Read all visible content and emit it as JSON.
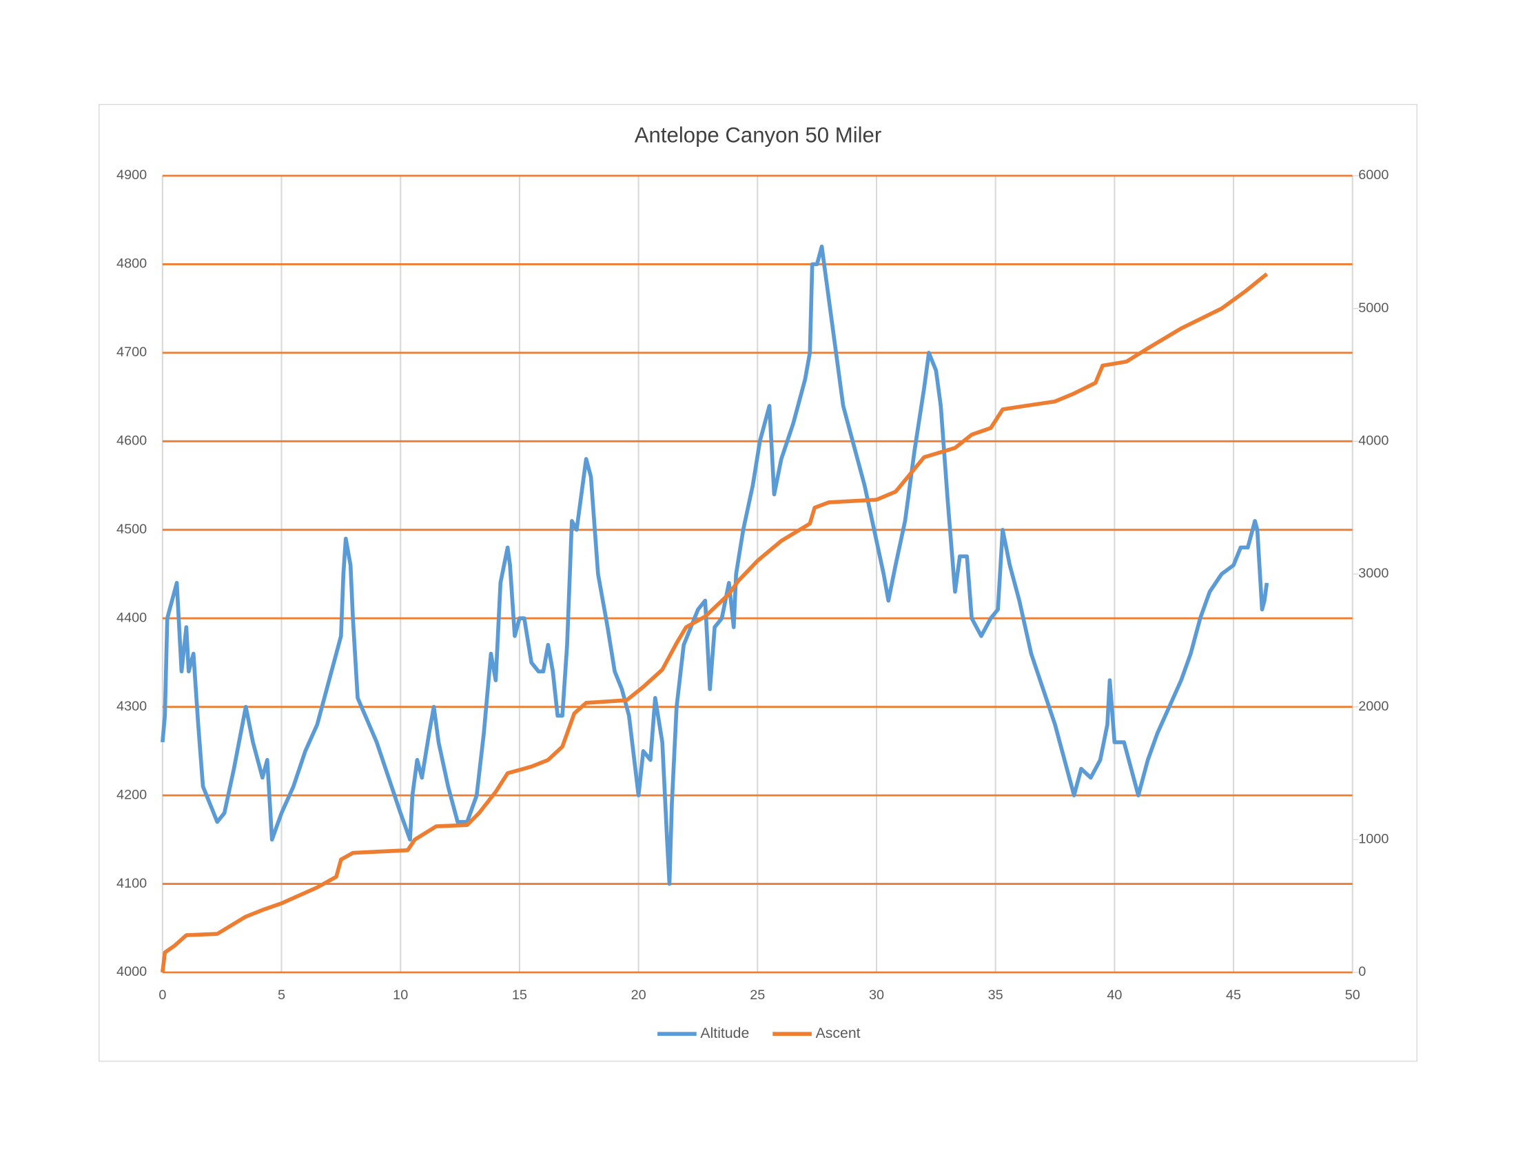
{
  "chart_data": {
    "type": "line",
    "title": "Antelope Canyon 50 Miler",
    "xlim": [
      0,
      50
    ],
    "xticks": [
      0,
      5,
      10,
      15,
      20,
      25,
      30,
      35,
      40,
      45,
      50
    ],
    "ylim": [
      4000,
      4900
    ],
    "yticks": [
      4000,
      4100,
      4200,
      4300,
      4400,
      4500,
      4600,
      4700,
      4800,
      4900
    ],
    "y2lim": [
      0,
      6000
    ],
    "y2ticks": [
      0,
      1000,
      2000,
      3000,
      4000,
      5000,
      6000
    ],
    "grid": true,
    "hgrid_color": "#ed7d31",
    "vgrid_color": "#d9d9d9",
    "legend": "bottom",
    "series": [
      {
        "name": "Altitude",
        "color": "#5b9bd5",
        "x": [
          0,
          0.1,
          0.2,
          0.5,
          0.6,
          0.8,
          1.0,
          1.1,
          1.3,
          1.5,
          1.7,
          2.0,
          2.3,
          2.6,
          3.0,
          3.5,
          3.8,
          4.2,
          4.4,
          4.6,
          5.0,
          5.5,
          6.0,
          6.5,
          7.0,
          7.3,
          7.5,
          7.6,
          7.7,
          7.9,
          8.0,
          8.2,
          9.0,
          9.5,
          10.0,
          10.4,
          10.5,
          10.7,
          10.9,
          11.2,
          11.4,
          11.6,
          12.0,
          12.4,
          12.8,
          13.2,
          13.5,
          13.8,
          14.0,
          14.2,
          14.5,
          14.6,
          14.8,
          15.0,
          15.2,
          15.5,
          15.8,
          16.0,
          16.2,
          16.4,
          16.6,
          16.8,
          17.0,
          17.2,
          17.4,
          17.6,
          17.8,
          18.0,
          18.3,
          18.7,
          19.0,
          19.3,
          19.6,
          20.0,
          20.2,
          20.5,
          20.7,
          21.0,
          21.2,
          21.3,
          21.4,
          21.6,
          21.9,
          22.2,
          22.5,
          22.8,
          23.0,
          23.2,
          23.5,
          23.8,
          24.0,
          24.1,
          24.4,
          24.8,
          25.1,
          25.5,
          25.7,
          26.0,
          26.5,
          27.0,
          27.2,
          27.3,
          27.5,
          27.7,
          28.0,
          28.3,
          28.6,
          29.0,
          29.5,
          29.9,
          30.3,
          30.5,
          30.8,
          31.2,
          31.6,
          32.0,
          32.2,
          32.5,
          32.7,
          33.0,
          33.3,
          33.5,
          33.8,
          34.0,
          34.4,
          34.8,
          35.1,
          35.3,
          35.6,
          36.0,
          36.5,
          37.0,
          37.5,
          38.0,
          38.3,
          38.6,
          39.0,
          39.4,
          39.7,
          39.8,
          40.0,
          40.4,
          40.7,
          41.0,
          41.4,
          41.8,
          42.3,
          42.8,
          43.2,
          43.6,
          44.0,
          44.5,
          45.0,
          45.3,
          45.6,
          45.9,
          46.0,
          46.2,
          46.3,
          46.4
        ],
        "values": [
          4260,
          4290,
          4400,
          4430,
          4440,
          4340,
          4390,
          4340,
          4360,
          4280,
          4210,
          4190,
          4170,
          4180,
          4230,
          4300,
          4260,
          4220,
          4240,
          4150,
          4180,
          4210,
          4250,
          4280,
          4330,
          4360,
          4380,
          4450,
          4490,
          4460,
          4400,
          4310,
          4260,
          4220,
          4180,
          4150,
          4200,
          4240,
          4220,
          4270,
          4300,
          4260,
          4210,
          4170,
          4170,
          4200,
          4270,
          4360,
          4330,
          4440,
          4480,
          4460,
          4380,
          4400,
          4400,
          4350,
          4340,
          4340,
          4370,
          4340,
          4290,
          4290,
          4370,
          4510,
          4500,
          4540,
          4580,
          4560,
          4450,
          4390,
          4340,
          4320,
          4290,
          4200,
          4250,
          4240,
          4310,
          4260,
          4150,
          4100,
          4190,
          4300,
          4370,
          4390,
          4410,
          4420,
          4320,
          4390,
          4400,
          4440,
          4390,
          4450,
          4500,
          4550,
          4600,
          4640,
          4540,
          4580,
          4620,
          4670,
          4700,
          4800,
          4800,
          4820,
          4760,
          4700,
          4640,
          4600,
          4550,
          4500,
          4450,
          4420,
          4460,
          4510,
          4590,
          4660,
          4700,
          4680,
          4640,
          4530,
          4430,
          4470,
          4470,
          4400,
          4380,
          4400,
          4410,
          4500,
          4460,
          4420,
          4360,
          4320,
          4280,
          4230,
          4200,
          4230,
          4220,
          4240,
          4280,
          4330,
          4260,
          4260,
          4230,
          4200,
          4240,
          4270,
          4300,
          4330,
          4360,
          4400,
          4430,
          4450,
          4460,
          4480,
          4480,
          4510,
          4500,
          4410,
          4420,
          4440
        ]
      },
      {
        "name": "Ascent",
        "color": "#ed7d31",
        "axis": "y2",
        "x": [
          0,
          0.1,
          0.5,
          1.0,
          2.3,
          3.5,
          4.2,
          5,
          6.5,
          7.3,
          7.5,
          8,
          10.3,
          10.6,
          11.5,
          12.8,
          13.3,
          14,
          14.5,
          15.5,
          16.2,
          16.8,
          17.3,
          17.8,
          19.5,
          20.2,
          21,
          21.6,
          22,
          22.8,
          23.8,
          24.2,
          25,
          26,
          27.2,
          27.4,
          28,
          30,
          30.8,
          32,
          33.3,
          34,
          34.8,
          35.3,
          36,
          37.5,
          38.3,
          39.2,
          39.5,
          40.5,
          41.4,
          42.8,
          44.5,
          45.5,
          46.4
        ],
        "values": [
          0,
          150,
          200,
          280,
          290,
          420,
          470,
          520,
          640,
          720,
          850,
          900,
          920,
          1000,
          1100,
          1110,
          1200,
          1360,
          1500,
          1550,
          1600,
          1700,
          1950,
          2030,
          2050,
          2150,
          2280,
          2480,
          2600,
          2680,
          2850,
          2950,
          3100,
          3250,
          3380,
          3500,
          3540,
          3560,
          3620,
          3880,
          3950,
          4050,
          4100,
          4240,
          4260,
          4300,
          4360,
          4440,
          4570,
          4600,
          4700,
          4850,
          5000,
          5130,
          5260
        ]
      }
    ]
  }
}
